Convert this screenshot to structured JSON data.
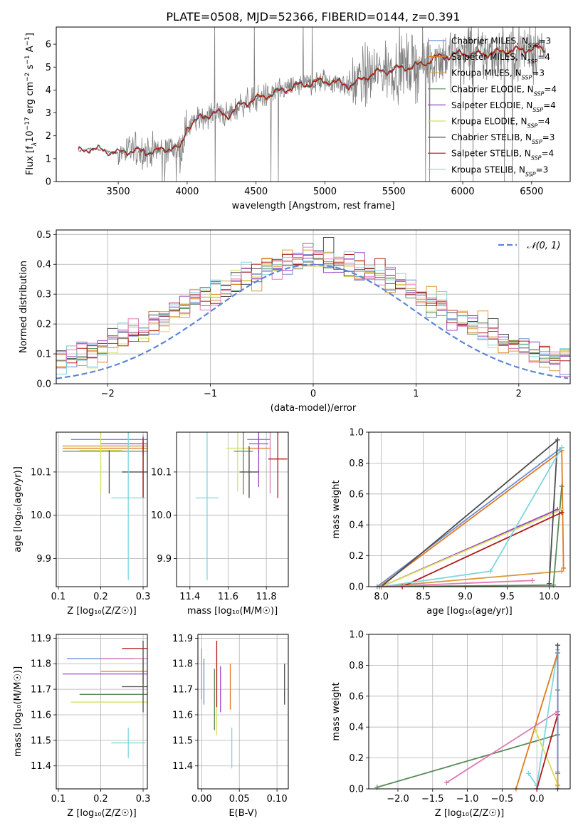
{
  "title": "PLATE=0508, MJD=52366, FIBERID=0144, z=0.391",
  "colors": {
    "Chabrier MILES": "#6b8fd6",
    "Salpeter MILES": "#e07b20",
    "Kroupa MILES": "#d89a3a",
    "Chabrier ELODIE": "#5a8a5a",
    "Salpeter ELODIE": "#9b44c0",
    "Kroupa ELODIE": "#d7e05a",
    "Chabrier STELIB": "#4d4d4d",
    "Salpeter STELIB": "#b01818",
    "Kroupa STELIB": "#7fd6e0",
    "pink": "#e07cb8",
    "normal": "#5b86d6",
    "data": "#808080"
  },
  "chart_data": [
    {
      "type": "line",
      "name": "spectrum",
      "xlabel": "wavelength [Angstrom, rest frame]",
      "ylabel_parts": [
        "Flux [f",
        "λ",
        "10",
        "−17",
        " erg cm",
        "−2",
        " s",
        "−1",
        " A",
        "−1",
        "]"
      ],
      "xlim": [
        3050,
        6780
      ],
      "ylim": [
        0,
        6.75
      ],
      "xticks": [
        3500,
        4000,
        4500,
        5000,
        5500,
        6000,
        6500
      ],
      "yticks": [
        0,
        1,
        2,
        3,
        4,
        5,
        6
      ],
      "continuum": [
        [
          3200,
          1.3
        ],
        [
          3300,
          1.45
        ],
        [
          3400,
          1.35
        ],
        [
          3500,
          1.25
        ],
        [
          3600,
          1.35
        ],
        [
          3700,
          1.3
        ],
        [
          3800,
          1.35
        ],
        [
          3900,
          1.5
        ],
        [
          3950,
          1.4
        ],
        [
          4000,
          2.4
        ],
        [
          4100,
          2.8
        ],
        [
          4200,
          3.0
        ],
        [
          4300,
          2.9
        ],
        [
          4400,
          3.4
        ],
        [
          4500,
          3.6
        ],
        [
          4600,
          3.8
        ],
        [
          4700,
          4.0
        ],
        [
          4800,
          4.2
        ],
        [
          4900,
          4.3
        ],
        [
          5000,
          4.4
        ],
        [
          5100,
          4.3
        ],
        [
          5200,
          4.2
        ],
        [
          5300,
          4.6
        ],
        [
          5400,
          4.8
        ],
        [
          5500,
          4.9
        ],
        [
          5600,
          5.0
        ],
        [
          5700,
          5.1
        ],
        [
          5800,
          5.4
        ],
        [
          5900,
          5.5
        ],
        [
          6000,
          5.6
        ],
        [
          6100,
          5.55
        ],
        [
          6200,
          5.6
        ],
        [
          6300,
          5.7
        ],
        [
          6400,
          5.75
        ],
        [
          6500,
          5.8
        ],
        [
          6600,
          5.8
        ]
      ],
      "legend": [
        {
          "label": "Chabrier MILES",
          "nssp": "3"
        },
        {
          "label": "Salpeter MILES",
          "nssp": "4"
        },
        {
          "label": "Kroupa MILES",
          "nssp": "3"
        },
        {
          "label": "Chabrier ELODIE",
          "nssp": "4"
        },
        {
          "label": "Salpeter ELODIE",
          "nssp": "4"
        },
        {
          "label": "Kroupa ELODIE",
          "nssp": "4"
        },
        {
          "label": "Chabrier STELIB",
          "nssp": "3"
        },
        {
          "label": "Salpeter STELIB",
          "nssp": "4"
        },
        {
          "label": "Kroupa STELIB",
          "nssp": "3"
        }
      ],
      "nssp_prefix": "N",
      "nssp_sub": "SSP"
    },
    {
      "type": "line",
      "name": "residual-histogram",
      "xlabel": "(data-model)/error",
      "ylabel": "Normed distribution",
      "xlim": [
        -2.5,
        2.5
      ],
      "ylim": [
        0,
        0.515
      ],
      "xticks": [
        -2,
        -1,
        0,
        1,
        2
      ],
      "yticks": [
        0.0,
        0.1,
        0.2,
        0.3,
        0.4,
        0.5
      ],
      "legend_label": "𝒩(0, 1)",
      "bin_width": 0.1
    },
    {
      "type": "scatter",
      "name": "age-vs-Z",
      "xlabel": "Z [log₁₀(Z/Z☉)]",
      "ylabel": "age  [log₁₀(age/yr)]",
      "xlim": [
        0.095,
        0.31
      ],
      "ylim": [
        9.835,
        10.192
      ],
      "xticks": [
        0.1,
        0.2,
        0.3
      ],
      "yticks": [
        9.9,
        10.0,
        10.1
      ],
      "points": [
        {
          "c": "Chabrier MILES",
          "x": 0.3,
          "xerr": 0.17,
          "y": 10.175,
          "yerr": 0.01
        },
        {
          "c": "Salpeter MILES",
          "x": 0.3,
          "xerr": 0.19,
          "y": 10.155,
          "yerr": 0.01
        },
        {
          "c": "Kroupa MILES",
          "x": 0.3,
          "xerr": 0.19,
          "y": 10.16,
          "yerr": 0.01
        },
        {
          "c": "Chabrier ELODIE",
          "x": 0.3,
          "xerr": 0.19,
          "y": 10.148,
          "yerr": 0.01
        },
        {
          "c": "Salpeter ELODIE",
          "x": 0.3,
          "xerr": 0.1,
          "y": 10.165,
          "yerr": 0.01
        },
        {
          "c": "Kroupa ELODIE",
          "x": 0.2,
          "xerr": 0.05,
          "y": 10.15,
          "yerr": 0.1
        },
        {
          "c": "Chabrier STELIB",
          "x": 0.3,
          "xerr": 0.05,
          "y": 10.1,
          "yerr": 0.06
        },
        {
          "c": "Salpeter STELIB",
          "x": 0.3,
          "xerr": 0.0,
          "y": 10.11,
          "yerr": 0.07
        },
        {
          "c": "Kroupa STELIB",
          "x": 0.265,
          "xerr": 0.04,
          "y": 10.04,
          "yerr": 0.19
        },
        {
          "c": "Chabrier STELIB",
          "x": 0.22,
          "xerr": 0.0,
          "y": 10.1,
          "yerr": 0.05
        }
      ]
    },
    {
      "type": "scatter",
      "name": "age-vs-mass",
      "xlabel": "mass [log₁₀(M/M☉)]",
      "ylabel": "",
      "xlim": [
        11.33,
        11.915
      ],
      "ylim": [
        9.835,
        10.192
      ],
      "xticks": [
        11.4,
        11.6,
        11.8
      ],
      "yticks": [
        9.9,
        10.0,
        10.1
      ],
      "points": [
        {
          "c": "Chabrier MILES",
          "x": 11.76,
          "xerr": 0.06,
          "y": 10.175,
          "yerr": 0.01
        },
        {
          "c": "Salpeter MILES",
          "x": 11.76,
          "xerr": 0.06,
          "y": 10.155,
          "yerr": 0.01
        },
        {
          "c": "Kroupa ELODIE",
          "x": 11.65,
          "xerr": 0.06,
          "y": 10.155,
          "yerr": 0.1
        },
        {
          "c": "Chabrier ELODIE",
          "x": 11.68,
          "xerr": 0.05,
          "y": 10.148,
          "yerr": 0.1
        },
        {
          "c": "Salpeter ELODIE",
          "x": 11.76,
          "xerr": 0.05,
          "y": 10.165,
          "yerr": 0.1
        },
        {
          "c": "pink",
          "x": 11.82,
          "xerr": 0.0,
          "y": 10.15,
          "yerr": 0.1
        },
        {
          "c": "Chabrier STELIB",
          "x": 11.71,
          "xerr": 0.05,
          "y": 10.1,
          "yerr": 0.06
        },
        {
          "c": "Salpeter STELIB",
          "x": 11.86,
          "xerr": 0.05,
          "y": 10.13,
          "yerr": 0.09
        },
        {
          "c": "Kroupa STELIB",
          "x": 11.49,
          "xerr": 0.06,
          "y": 10.04,
          "yerr": 0.19
        }
      ]
    },
    {
      "type": "line",
      "name": "mass-weight-vs-age",
      "xlabel": "age  [log₁₀(age/yr)]",
      "ylabel": "mass weight",
      "xlim": [
        7.85,
        10.25
      ],
      "ylim": [
        0,
        1.0
      ],
      "xticks": [
        8.0,
        8.5,
        9.0,
        9.5,
        10.0
      ],
      "yticks": [
        0.0,
        0.2,
        0.4,
        0.6,
        0.8,
        1.0
      ],
      "series": [
        {
          "c": "Chabrier MILES",
          "pts": [
            [
              7.95,
              0.0
            ],
            [
              10.15,
              0.9
            ]
          ]
        },
        {
          "c": "Salpeter MILES",
          "pts": [
            [
              7.98,
              0.0
            ],
            [
              10.15,
              0.88
            ],
            [
              10.17,
              0.12
            ]
          ]
        },
        {
          "c": "Kroupa MILES",
          "pts": [
            [
              8.0,
              0.0
            ],
            [
              10.15,
              0.1
            ]
          ]
        },
        {
          "c": "Chabrier ELODIE",
          "pts": [
            [
              8.0,
              0.0
            ],
            [
              10.05,
              0.01
            ],
            [
              10.15,
              0.65
            ]
          ]
        },
        {
          "c": "Salpeter ELODIE",
          "pts": [
            [
              8.0,
              0.0
            ],
            [
              10.1,
              0.5
            ]
          ]
        },
        {
          "c": "Kroupa ELODIE",
          "pts": [
            [
              8.0,
              0.0
            ],
            [
              10.15,
              0.5
            ]
          ]
        },
        {
          "c": "Chabrier STELIB",
          "pts": [
            [
              8.0,
              0.0
            ],
            [
              10.1,
              0.95
            ],
            [
              10.0,
              0.02
            ]
          ]
        },
        {
          "c": "Salpeter STELIB",
          "pts": [
            [
              8.25,
              0.0
            ],
            [
              10.15,
              0.48
            ]
          ]
        },
        {
          "c": "Kroupa STELIB",
          "pts": [
            [
              8.0,
              0.0
            ],
            [
              9.3,
              0.1
            ],
            [
              10.15,
              0.9
            ]
          ]
        },
        {
          "c": "pink",
          "pts": [
            [
              8.0,
              0.0
            ],
            [
              9.8,
              0.04
            ]
          ]
        }
      ]
    },
    {
      "type": "scatter",
      "name": "mass-vs-Z",
      "xlabel": "Z [log₁₀(Z/Z☉)]",
      "ylabel": "mass [log₁₀(M/M☉)]",
      "xlim": [
        0.095,
        0.31
      ],
      "ylim": [
        11.31,
        11.915
      ],
      "xticks": [
        0.1,
        0.2,
        0.3
      ],
      "yticks": [
        11.4,
        11.5,
        11.6,
        11.7,
        11.8,
        11.9
      ],
      "points": [
        {
          "c": "Chabrier MILES",
          "x": 0.2,
          "xerr": 0.08,
          "y": 11.82,
          "yerr": 0.0
        },
        {
          "c": "Salpeter MILES",
          "x": 0.3,
          "xerr": 0.1,
          "y": 11.77,
          "yerr": 0.05
        },
        {
          "c": "Kroupa ELODIE",
          "x": 0.3,
          "xerr": 0.17,
          "y": 11.65,
          "yerr": 0.0
        },
        {
          "c": "Chabrier ELODIE",
          "x": 0.3,
          "xerr": 0.15,
          "y": 11.68,
          "yerr": 0.0
        },
        {
          "c": "Salpeter ELODIE",
          "x": 0.3,
          "xerr": 0.19,
          "y": 11.76,
          "yerr": 0.0
        },
        {
          "c": "pink",
          "x": 0.3,
          "xerr": 0.1,
          "y": 11.82,
          "yerr": 0.0
        },
        {
          "c": "Chabrier STELIB",
          "x": 0.3,
          "xerr": 0.05,
          "y": 11.71,
          "yerr": 0.0
        },
        {
          "c": "Salpeter STELIB",
          "x": 0.3,
          "xerr": 0.05,
          "y": 11.86,
          "yerr": 0.0
        },
        {
          "c": "Kroupa STELIB",
          "x": 0.265,
          "xerr": 0.04,
          "y": 11.49,
          "yerr": 0.06
        },
        {
          "c": "Chabrier STELIB",
          "x": 0.3,
          "xerr": 0.0,
          "y": 11.75,
          "yerr": 0.14
        }
      ]
    },
    {
      "type": "scatter",
      "name": "mass-vs-EBV",
      "xlabel": "E(B-V)",
      "ylabel": "",
      "xlim": [
        -0.005,
        0.115
      ],
      "ylim": [
        11.31,
        11.915
      ],
      "xticks": [
        0.0,
        0.05,
        0.1
      ],
      "xticklabels": [
        "0.00",
        "0.05",
        "0.10"
      ],
      "yticks": [
        11.4,
        11.5,
        11.6,
        11.7,
        11.8,
        11.9
      ],
      "points": [
        {
          "c": "pink",
          "x": 0.0,
          "y": 11.76,
          "yerr": 0.1
        },
        {
          "c": "Chabrier MILES",
          "x": 0.003,
          "y": 11.73,
          "yerr": 0.09
        },
        {
          "c": "Chabrier ELODIE",
          "x": 0.017,
          "y": 11.66,
          "yerr": 0.12
        },
        {
          "c": "Kroupa ELODIE",
          "x": 0.02,
          "y": 11.65,
          "yerr": 0.13
        },
        {
          "c": "Salpeter STELIB",
          "x": 0.02,
          "y": 11.76,
          "yerr": 0.13
        },
        {
          "c": "Salpeter ELODIE",
          "x": 0.025,
          "y": 11.7,
          "yerr": 0.09
        },
        {
          "c": "Salpeter MILES",
          "x": 0.038,
          "y": 11.71,
          "yerr": 0.09
        },
        {
          "c": "Kroupa STELIB",
          "x": 0.04,
          "y": 11.47,
          "yerr": 0.08
        },
        {
          "c": "Chabrier STELIB",
          "x": 0.11,
          "y": 11.72,
          "yerr": 0.08
        }
      ]
    },
    {
      "type": "line",
      "name": "mass-weight-vs-Z",
      "xlabel": "Z [log₁₀(Z/Z☉)]",
      "ylabel": "mass weight",
      "xlim": [
        -2.42,
        0.48
      ],
      "ylim": [
        0,
        1.0
      ],
      "xticks": [
        -2.0,
        -1.5,
        -1.0,
        -0.5,
        0.0
      ],
      "yticks": [
        0.0,
        0.2,
        0.4,
        0.6,
        0.8,
        1.0
      ],
      "series": [
        {
          "c": "Chabrier ELODIE",
          "pts": [
            [
              -2.3,
              0.01
            ],
            [
              0.3,
              0.35
            ],
            [
              0.3,
              0.64
            ]
          ]
        },
        {
          "c": "pink",
          "pts": [
            [
              -1.3,
              0.04
            ],
            [
              0.3,
              0.5
            ]
          ]
        },
        {
          "c": "Kroupa STELIB",
          "pts": [
            [
              -0.12,
              0.1
            ],
            [
              0.0,
              0.02
            ],
            [
              0.3,
              0.9
            ]
          ]
        },
        {
          "c": "Salpeter MILES",
          "pts": [
            [
              -0.3,
              0.0
            ],
            [
              0.3,
              0.88
            ]
          ]
        },
        {
          "c": "Kroupa ELODIE",
          "pts": [
            [
              -0.02,
              0.38
            ],
            [
              0.3,
              0.03
            ]
          ]
        },
        {
          "c": "Chabrier STELIB",
          "pts": [
            [
              0.3,
              0.93
            ],
            [
              0.3,
              0.0
            ]
          ]
        },
        {
          "c": "Salpeter STELIB",
          "pts": [
            [
              0.0,
              0.0
            ],
            [
              0.3,
              0.48
            ]
          ]
        },
        {
          "c": "Kroupa MILES",
          "pts": [
            [
              0.3,
              0.11
            ],
            [
              0.3,
              0.02
            ]
          ]
        },
        {
          "c": "Chabrier MILES",
          "pts": [
            [
              0.3,
              0.88
            ],
            [
              0.3,
              0.1
            ]
          ]
        }
      ]
    }
  ]
}
